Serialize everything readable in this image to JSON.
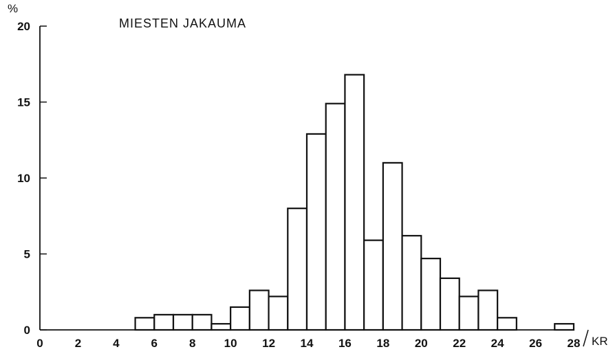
{
  "chart_data": {
    "type": "bar",
    "title": "MIESTEN JAKAUMA",
    "ylabel": "%",
    "xlabel": "KR",
    "ylim": [
      0,
      20
    ],
    "xlim": [
      0,
      28
    ],
    "yticks": [
      0,
      5,
      10,
      15,
      20
    ],
    "xticks": [
      0,
      2,
      4,
      6,
      8,
      10,
      12,
      14,
      16,
      18,
      20,
      22,
      24,
      26,
      28
    ],
    "bins": [
      {
        "x0": 5,
        "x1": 6,
        "value": 0.8
      },
      {
        "x0": 6,
        "x1": 7,
        "value": 1.0
      },
      {
        "x0": 7,
        "x1": 8,
        "value": 1.0
      },
      {
        "x0": 8,
        "x1": 9,
        "value": 1.0
      },
      {
        "x0": 9,
        "x1": 10,
        "value": 0.4
      },
      {
        "x0": 10,
        "x1": 11,
        "value": 1.5
      },
      {
        "x0": 11,
        "x1": 12,
        "value": 2.6
      },
      {
        "x0": 12,
        "x1": 13,
        "value": 2.2
      },
      {
        "x0": 13,
        "x1": 14,
        "value": 8.0
      },
      {
        "x0": 14,
        "x1": 15,
        "value": 12.9
      },
      {
        "x0": 15,
        "x1": 16,
        "value": 14.9
      },
      {
        "x0": 16,
        "x1": 17,
        "value": 16.8
      },
      {
        "x0": 17,
        "x1": 18,
        "value": 5.9
      },
      {
        "x0": 18,
        "x1": 19,
        "value": 11.0
      },
      {
        "x0": 19,
        "x1": 20,
        "value": 6.2
      },
      {
        "x0": 20,
        "x1": 21,
        "value": 4.7
      },
      {
        "x0": 21,
        "x1": 22,
        "value": 3.4
      },
      {
        "x0": 22,
        "x1": 23,
        "value": 2.2
      },
      {
        "x0": 23,
        "x1": 24,
        "value": 2.6
      },
      {
        "x0": 24,
        "x1": 25,
        "value": 0.8
      },
      {
        "x0": 27,
        "x1": 28,
        "value": 0.4
      }
    ],
    "grid": false,
    "colors": {
      "bar_fill": "#ffffff",
      "stroke": "#111111"
    }
  }
}
